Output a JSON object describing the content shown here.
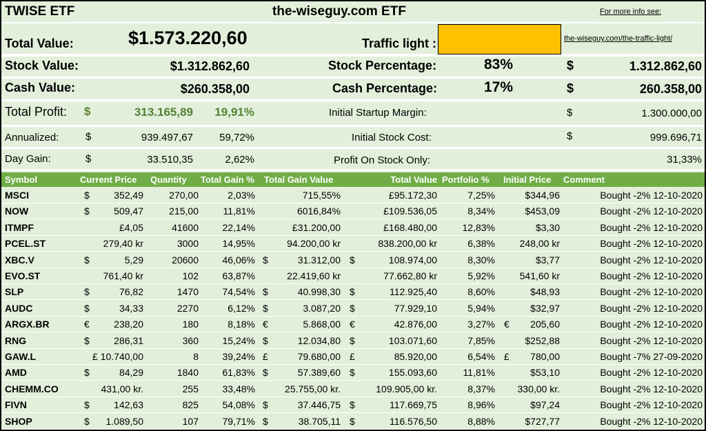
{
  "header": {
    "title_left": "TWISE ETF",
    "title_center": "the-wiseguy.com ETF",
    "more_info": "For more info see:"
  },
  "summary": {
    "total_value_label": "Total Value:",
    "total_value": "$1.573.220,60",
    "traffic_light_label": "Traffic light :",
    "traffic_light_color": "#ffc000",
    "traffic_light_link": "the-wiseguy.com/the-traffic-light/",
    "stock_value_label": "Stock Value:",
    "stock_value": "$1.312.862,60",
    "stock_pct_label": "Stock Percentage:",
    "stock_pct": "83%",
    "stock_amount_cur": "$",
    "stock_amount": "1.312.862,60",
    "cash_value_label": "Cash Value:",
    "cash_value": "$260.358,00",
    "cash_pct_label": "Cash Percentage:",
    "cash_pct": "17%",
    "cash_amount_cur": "$",
    "cash_amount": "260.358,00",
    "total_profit_label": "Total Profit:",
    "total_profit_cur": "$",
    "total_profit": "313.165,89",
    "total_profit_pct": "19,91%",
    "startup_margin_label": "Initial Startup Margin:",
    "startup_margin_cur": "$",
    "startup_margin": "1.300.000,00",
    "annualized_label": "Annualized:",
    "annualized_cur": "$",
    "annualized": "939.497,67",
    "annualized_pct": "59,72%",
    "stock_cost_label": "Initial Stock Cost:",
    "stock_cost_cur": "$",
    "stock_cost": "999.696,71",
    "day_gain_label": "Day Gain:",
    "day_gain_cur": "$",
    "day_gain": "33.510,35",
    "day_gain_pct": "2,62%",
    "profit_stock_label": "Profit On Stock Only:",
    "profit_stock": "31,33%"
  },
  "table": {
    "columns": [
      "Symbol",
      "Current Price",
      "Quantity",
      "Total Gain %",
      "Total Gain Value",
      "Total Value",
      "Portfolio %",
      "Initial Price",
      "Comment"
    ],
    "rows": [
      {
        "symbol": "MSCI",
        "price_cur": "$",
        "price": "352,49",
        "qty": "270,00",
        "gain_pct": "2,03%",
        "gain_cur": "",
        "gain": "715,55%",
        "total_cur": "",
        "total": "£95.172,30",
        "port": "7,25%",
        "init_cur": "",
        "init": "$344,96",
        "comment": "Bought -2% 12-10-2020"
      },
      {
        "symbol": "NOW",
        "price_cur": "$",
        "price": "509,47",
        "qty": "215,00",
        "gain_pct": "11,81%",
        "gain_cur": "",
        "gain": "6016,84%",
        "total_cur": "",
        "total": "£109.536,05",
        "port": "8,34%",
        "init_cur": "",
        "init": "$453,09",
        "comment": "Bought -2% 12-10-2020"
      },
      {
        "symbol": "ITMPF",
        "price_cur": "",
        "price": "£4,05",
        "qty": "41600",
        "gain_pct": "22,14%",
        "gain_cur": "",
        "gain": "£31.200,00",
        "total_cur": "",
        "total": "£168.480,00",
        "port": "12,83%",
        "init_cur": "",
        "init": "$3,30",
        "comment": "Bought -2% 12-10-2020"
      },
      {
        "symbol": "PCEL.ST",
        "price_cur": "",
        "price": "279,40 kr",
        "qty": "3000",
        "gain_pct": "14,95%",
        "gain_cur": "",
        "gain": "94.200,00 kr",
        "total_cur": "",
        "total": "838.200,00 kr",
        "port": "6,38%",
        "init_cur": "",
        "init": "248,00 kr",
        "comment": "Bought -2% 12-10-2020"
      },
      {
        "symbol": "XBC.V",
        "price_cur": "$",
        "price": "5,29",
        "qty": "20600",
        "gain_pct": "46,06%",
        "gain_cur": "$",
        "gain": "31.312,00",
        "total_cur": "$",
        "total": "108.974,00",
        "port": "8,30%",
        "init_cur": "",
        "init": "$3,77",
        "comment": "Bought -2% 12-10-2020"
      },
      {
        "symbol": "EVO.ST",
        "price_cur": "",
        "price": "761,40 kr",
        "qty": "102",
        "gain_pct": "63,87%",
        "gain_cur": "",
        "gain": "22.419,60 kr",
        "total_cur": "",
        "total": "77.662,80 kr",
        "port": "5,92%",
        "init_cur": "",
        "init": "541,60 kr",
        "comment": "Bought -2% 12-10-2020"
      },
      {
        "symbol": "SLP",
        "price_cur": "$",
        "price": "76,82",
        "qty": "1470",
        "gain_pct": "74,54%",
        "gain_cur": "$",
        "gain": "40.998,30",
        "total_cur": "$",
        "total": "112.925,40",
        "port": "8,60%",
        "init_cur": "",
        "init": "$48,93",
        "comment": "Bought -2% 12-10-2020"
      },
      {
        "symbol": "AUDC",
        "price_cur": "$",
        "price": "34,33",
        "qty": "2270",
        "gain_pct": "6,12%",
        "gain_cur": "$",
        "gain": "3.087,20",
        "total_cur": "$",
        "total": "77.929,10",
        "port": "5,94%",
        "init_cur": "",
        "init": "$32,97",
        "comment": "Bought -2% 12-10-2020"
      },
      {
        "symbol": "ARGX.BR",
        "price_cur": "€",
        "price": "238,20",
        "qty": "180",
        "gain_pct": "8,18%",
        "gain_cur": "€",
        "gain": "5.868,00",
        "total_cur": "€",
        "total": "42.876,00",
        "port": "3,27%",
        "init_cur": "€",
        "init": "205,60",
        "comment": "Bought -2% 12-10-2020"
      },
      {
        "symbol": "RNG",
        "price_cur": "$",
        "price": "286,31",
        "qty": "360",
        "gain_pct": "15,24%",
        "gain_cur": "$",
        "gain": "12.034,80",
        "total_cur": "$",
        "total": "103.071,60",
        "port": "7,85%",
        "init_cur": "",
        "init": "$252,88",
        "comment": "Bought -2% 12-10-2020"
      },
      {
        "symbol": "GAW.L",
        "price_cur": "",
        "price": "£ 10.740,00",
        "qty": "8",
        "gain_pct": "39,24%",
        "gain_cur": "£",
        "gain": "79.680,00",
        "total_cur": "£",
        "total": "85.920,00",
        "port": "6,54%",
        "init_cur": "£",
        "init": "780,00",
        "comment": "Bought -7% 27-09-2020"
      },
      {
        "symbol": "AMD",
        "price_cur": "$",
        "price": "84,29",
        "qty": "1840",
        "gain_pct": "61,83%",
        "gain_cur": "$",
        "gain": "57.389,60",
        "total_cur": "$",
        "total": "155.093,60",
        "port": "11,81%",
        "init_cur": "",
        "init": "$53,10",
        "comment": "Bought -2% 12-10-2020"
      },
      {
        "symbol": "CHEMM.CO",
        "price_cur": "",
        "price": "431,00 kr.",
        "qty": "255",
        "gain_pct": "33,48%",
        "gain_cur": "",
        "gain": "25.755,00 kr.",
        "total_cur": "",
        "total": "109.905,00 kr.",
        "port": "8,37%",
        "init_cur": "",
        "init": "330,00 kr.",
        "comment": "Bought -2% 12-10-2020"
      },
      {
        "symbol": "FIVN",
        "price_cur": "$",
        "price": "142,63",
        "qty": "825",
        "gain_pct": "54,08%",
        "gain_cur": "$",
        "gain": "37.446,75",
        "total_cur": "$",
        "total": "117.669,75",
        "port": "8,96%",
        "init_cur": "",
        "init": "$97,24",
        "comment": "Bought -2% 12-10-2020"
      },
      {
        "symbol": "SHOP",
        "price_cur": "$",
        "price": "1.089,50",
        "qty": "107",
        "gain_pct": "79,71%",
        "gain_cur": "$",
        "gain": "38.705,11",
        "total_cur": "$",
        "total": "116.576,50",
        "port": "8,88%",
        "init_cur": "",
        "init": "$727,77",
        "comment": "Bought -2% 12-10-2020"
      }
    ]
  }
}
